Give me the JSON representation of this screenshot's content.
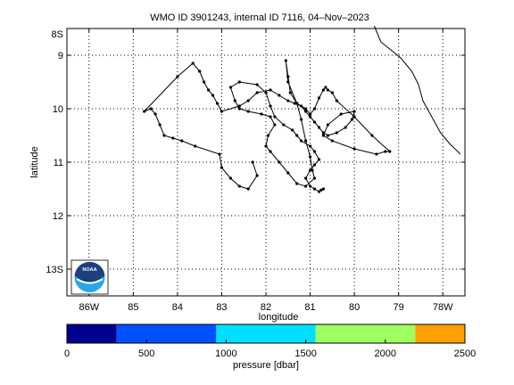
{
  "chart_data": {
    "type": "line",
    "title": "WMO ID 3901243, internal ID 7116, 04–Nov–2023",
    "xlabel": "longitude",
    "ylabel": "latitude",
    "xlim": [
      -86.5,
      -77.5
    ],
    "ylim": [
      -13.5,
      -8.5
    ],
    "grid": true,
    "x_ticks": [
      {
        "value": -86,
        "label": "86W"
      },
      {
        "value": -85,
        "label": "85"
      },
      {
        "value": -84,
        "label": "84"
      },
      {
        "value": -83,
        "label": "83"
      },
      {
        "value": -82,
        "label": "82"
      },
      {
        "value": -81,
        "label": "81"
      },
      {
        "value": -80,
        "label": "80"
      },
      {
        "value": -79,
        "label": "79"
      },
      {
        "value": -78,
        "label": "78W"
      }
    ],
    "y_ticks": [
      {
        "value": -9,
        "label": "9"
      },
      {
        "value": -10,
        "label": "10"
      },
      {
        "value": -11,
        "label": "11"
      },
      {
        "value": -12,
        "label": "12"
      },
      {
        "value": -13,
        "label": "13S"
      }
    ],
    "corner_tick_label": "8S",
    "series": [
      {
        "kind": "float-track",
        "x": [
          -82.3,
          -82.2,
          -82.4,
          -82.6,
          -82.8,
          -83.0,
          -83.05,
          -83.6,
          -83.9,
          -84.1,
          -84.3,
          -84.4,
          -84.5,
          -84.6,
          -84.75,
          -84.0,
          -83.65,
          -83.5,
          -83.4,
          -83.3,
          -83.2,
          -83.1,
          -83.0,
          -82.6,
          -82.4,
          -82.2,
          -81.9,
          -81.7,
          -81.5,
          -81.35,
          -81.2,
          -81.1,
          -81.0,
          -80.9,
          -80.8,
          -80.7,
          -80.6,
          -80.4,
          -80.2,
          -80.05,
          -80.0,
          -80.3,
          -80.6,
          -80.7,
          -80.5,
          -80.0,
          -79.5,
          -79.3,
          -79.2,
          -79.6,
          -80.0,
          -80.4,
          -80.5,
          -80.6,
          -80.65,
          -80.7,
          -80.8,
          -80.9,
          -81.0,
          -81.1,
          -81.3,
          -81.45,
          -81.5,
          -81.55,
          -81.5,
          -81.3,
          -81.2,
          -81.1,
          -81.0,
          -80.95,
          -80.9,
          -81.1,
          -81.3,
          -81.5,
          -81.7,
          -81.9,
          -82.0,
          -81.95,
          -81.8,
          -81.9,
          -82.1,
          -82.4,
          -82.6,
          -82.7,
          -82.8,
          -82.6,
          -82.2,
          -82.0,
          -81.9,
          -81.8,
          -81.6,
          -81.4,
          -81.3,
          -81.2,
          -81.0,
          -80.9,
          -80.8,
          -80.9,
          -81.0,
          -81.1,
          -81.0,
          -80.9,
          -80.8,
          -80.75,
          -80.7
        ],
        "y": [
          -11.0,
          -11.25,
          -11.5,
          -11.45,
          -11.3,
          -11.1,
          -10.85,
          -10.7,
          -10.6,
          -10.55,
          -10.5,
          -10.3,
          -10.1,
          -10.0,
          -10.05,
          -9.4,
          -9.15,
          -9.3,
          -9.5,
          -9.65,
          -9.75,
          -9.9,
          -10.05,
          -9.95,
          -9.85,
          -9.7,
          -9.65,
          -9.75,
          -9.85,
          -9.9,
          -9.95,
          -10.05,
          -10.15,
          -10.25,
          -10.35,
          -10.45,
          -10.5,
          -10.45,
          -10.35,
          -10.2,
          -10.05,
          -10.1,
          -10.3,
          -10.5,
          -10.6,
          -10.75,
          -10.85,
          -10.8,
          -10.8,
          -10.5,
          -10.15,
          -9.85,
          -9.7,
          -9.65,
          -9.6,
          -9.65,
          -9.8,
          -10.0,
          -10.1,
          -10.0,
          -9.9,
          -9.7,
          -9.4,
          -9.1,
          -9.5,
          -9.9,
          -10.2,
          -10.6,
          -10.9,
          -11.15,
          -11.3,
          -11.45,
          -11.4,
          -11.2,
          -11.0,
          -10.8,
          -10.7,
          -10.5,
          -10.3,
          -10.15,
          -10.1,
          -10.05,
          -10.0,
          -9.85,
          -9.6,
          -9.5,
          -9.55,
          -9.7,
          -9.95,
          -10.15,
          -10.3,
          -10.4,
          -10.5,
          -10.6,
          -10.7,
          -10.8,
          -10.95,
          -11.05,
          -11.15,
          -11.3,
          -11.45,
          -11.5,
          -11.55,
          -11.52,
          -11.5
        ]
      },
      {
        "kind": "coastline",
        "x": [
          -79.55,
          -79.4,
          -79.1,
          -78.95,
          -78.7,
          -78.55,
          -78.45,
          -78.25,
          -78.05,
          -77.85,
          -77.6
        ],
        "y": [
          -8.45,
          -8.75,
          -8.95,
          -9.05,
          -9.3,
          -9.55,
          -9.85,
          -10.15,
          -10.45,
          -10.65,
          -10.85
        ]
      }
    ],
    "logo": {
      "text": "NOAA",
      "colors": {
        "top": "#1d3f7e",
        "bottom": "#26a7e8"
      }
    },
    "colorbar": {
      "label": "pressure [dbar]",
      "range": [
        0,
        2500
      ],
      "tick_values": [
        0,
        500,
        1000,
        1500,
        2000,
        2500
      ],
      "tick_labels": [
        "0",
        "500",
        "1000",
        "1500",
        "2000",
        "2500"
      ],
      "segments": [
        {
          "from": 0,
          "to": 312,
          "color": "#00008f"
        },
        {
          "from": 312,
          "to": 938,
          "color": "#0050ff"
        },
        {
          "from": 938,
          "to": 1562,
          "color": "#00dfff"
        },
        {
          "from": 1562,
          "to": 2188,
          "color": "#9fff60"
        },
        {
          "from": 2188,
          "to": 2500,
          "color": "#ffa000"
        }
      ]
    }
  }
}
